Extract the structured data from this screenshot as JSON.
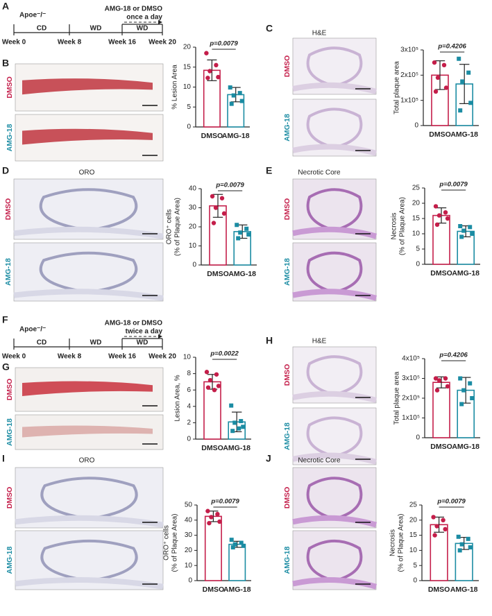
{
  "panel_labels": [
    "A",
    "B",
    "C",
    "D",
    "E",
    "F",
    "G",
    "H",
    "I",
    "J"
  ],
  "timelines": [
    {
      "strain": "Apoe⁻/⁻",
      "diets": [
        "CD",
        "WD",
        "WD"
      ],
      "weeks": [
        "Week 0",
        "Week 8",
        "Week 16",
        "Week 20"
      ],
      "treatment": [
        "AMG-18 or DMSO",
        "once a day"
      ]
    },
    {
      "strain": "Apoe⁻/⁻",
      "diets": [
        "CD",
        "WD",
        "WD"
      ],
      "weeks": [
        "Week 0",
        "Week 8",
        "Week 16",
        "Week 20"
      ],
      "treatment": [
        "AMG-18 or DMSO",
        "twice a day"
      ]
    }
  ],
  "image_panels": [
    {
      "rows": [
        "DMSO",
        "AMG-18"
      ]
    },
    {
      "title": "H&E",
      "rows": [
        "DMSO",
        "AMG-18"
      ]
    },
    {
      "title": "ORO",
      "rows": [
        "DMSO",
        "AMG-18"
      ]
    },
    {
      "title": "Necrotic Core",
      "rows": [
        "DMSO",
        "AMG-18"
      ]
    },
    {
      "rows": [
        "DMSO",
        "AMG-18"
      ]
    },
    {
      "title": "H&E",
      "rows": [
        "DMSO",
        "AMG-18"
      ]
    },
    {
      "title": "ORO",
      "rows": [
        "DMSO",
        "AMG-18"
      ]
    },
    {
      "title": "Necrotic Core",
      "rows": [
        "DMSO",
        "AMG-18"
      ]
    }
  ],
  "chart_data": [
    {
      "type": "bar",
      "ylabel": [
        "% Lesion Area"
      ],
      "categories": [
        "DMSO",
        "AMG-18"
      ],
      "colors": [
        "#c41e4a",
        "#1b8ca3"
      ],
      "values": [
        14.2,
        8.1
      ],
      "errors": [
        2.6,
        1.8
      ],
      "points": [
        [
          18.5,
          15.5,
          14,
          12.5,
          12.3
        ],
        [
          9.9,
          8.5,
          7.9,
          6.5,
          5.8
        ]
      ],
      "annotation": "p=0.0079",
      "ylim": [
        0,
        20
      ],
      "yticks": [
        0,
        5,
        10,
        15,
        20
      ]
    },
    {
      "type": "bar",
      "ylabel": [
        "Total plaque area"
      ],
      "categories": [
        "DMSO",
        "AMG-18"
      ],
      "colors": [
        "#c41e4a",
        "#1b8ca3"
      ],
      "values": [
        200000,
        165000
      ],
      "errors": [
        57000,
        78000
      ],
      "points": [
        [
          250000,
          240000,
          190000,
          150000,
          135000
        ],
        [
          265000,
          210000,
          175000,
          90000,
          60000
        ]
      ],
      "annotation": "p=0.4206",
      "ylim": [
        0,
        300000
      ],
      "yticks": [
        0,
        {
          "value": 100000,
          "label": "1x10⁵"
        },
        {
          "value": 200000,
          "label": "2x10⁵"
        },
        {
          "value": 300000,
          "label": "3x10⁵"
        }
      ]
    },
    {
      "type": "bar",
      "ylabel": [
        "ORO⁺ cells",
        "(% of Plaque Area)"
      ],
      "categories": [
        "DMSO",
        "AMG-18"
      ],
      "colors": [
        "#c41e4a",
        "#1b8ca3"
      ],
      "values": [
        31,
        17.5
      ],
      "errors": [
        6,
        3.5
      ],
      "points": [
        [
          36,
          35,
          30,
          27,
          22
        ],
        [
          21,
          19,
          17,
          16,
          14
        ]
      ],
      "annotation": "p=0.0079",
      "ylim": [
        0,
        40
      ],
      "yticks": [
        0,
        10,
        20,
        30,
        40
      ]
    },
    {
      "type": "bar",
      "ylabel": [
        "Necrosis",
        "(% of Plaque Area)"
      ],
      "categories": [
        "DMSO",
        "AMG-18"
      ],
      "colors": [
        "#c41e4a",
        "#1b8ca3"
      ],
      "values": [
        16,
        10.8
      ],
      "errors": [
        2.5,
        1.8
      ],
      "points": [
        [
          19,
          17,
          16,
          15,
          13
        ],
        [
          12.5,
          12.2,
          11,
          10,
          9
        ]
      ],
      "annotation": "p=0.0079",
      "ylim": [
        0,
        25
      ],
      "yticks": [
        0,
        5,
        10,
        15,
        20,
        25
      ]
    },
    {
      "type": "bar",
      "ylabel": [
        "Lesion Area, %"
      ],
      "categories": [
        "DMSO",
        "AMG-18"
      ],
      "colors": [
        "#c41e4a",
        "#1b8ca3"
      ],
      "values": [
        7.0,
        2.1
      ],
      "errors": [
        0.9,
        1.2
      ],
      "points": [
        [
          8.2,
          7.9,
          7.2,
          6.5,
          6.3,
          6.0
        ],
        [
          4.1,
          2.2,
          2.0,
          1.5,
          1.0,
          1.3
        ]
      ],
      "annotation": "p=0.0022",
      "ylim": [
        0,
        10
      ],
      "yticks": [
        0,
        2,
        4,
        6,
        8,
        10
      ]
    },
    {
      "type": "bar",
      "ylabel": [
        "Total plaque area"
      ],
      "categories": [
        "DMSO",
        "AMG-18"
      ],
      "colors": [
        "#c41e4a",
        "#1b8ca3"
      ],
      "values": [
        280000,
        240000
      ],
      "errors": [
        28000,
        65000
      ],
      "points": [
        [
          300000,
          300000,
          290000,
          260000,
          240000
        ],
        [
          300000,
          275000,
          240000,
          200000,
          170000
        ]
      ],
      "annotation": "p=0.4206",
      "ylim": [
        0,
        400000
      ],
      "yticks": [
        0,
        {
          "value": 100000,
          "label": "1x10⁵"
        },
        {
          "value": 200000,
          "label": "2x10⁵"
        },
        {
          "value": 300000,
          "label": "3x10⁵"
        },
        {
          "value": 400000,
          "label": "4x10⁵"
        }
      ]
    },
    {
      "type": "bar",
      "ylabel": [
        "ORO⁺ cells",
        "(% of Plaque Area)"
      ],
      "categories": [
        "DMSO",
        "AMG-18"
      ],
      "colors": [
        "#c41e4a",
        "#1b8ca3"
      ],
      "values": [
        42.5,
        24
      ],
      "errors": [
        3.5,
        2
      ],
      "points": [
        [
          46,
          44,
          42,
          39,
          38
        ],
        [
          27,
          25,
          24,
          23,
          22
        ]
      ],
      "annotation": "p=0.0079",
      "ylim": [
        0,
        50
      ],
      "yticks": [
        0,
        10,
        20,
        30,
        40,
        50
      ]
    },
    {
      "type": "bar",
      "ylabel": [
        "Necrosis",
        "(% of Plaque Area)"
      ],
      "categories": [
        "DMSO",
        "AMG-18"
      ],
      "colors": [
        "#c41e4a",
        "#1b8ca3"
      ],
      "values": [
        18.5,
        12.3
      ],
      "errors": [
        2.5,
        2
      ],
      "points": [
        [
          21,
          20,
          18,
          17,
          15
        ],
        [
          14.5,
          13.8,
          12,
          11,
          10
        ]
      ],
      "annotation": "p=0.0079",
      "ylim": [
        0,
        25
      ],
      "yticks": [
        0,
        5,
        10,
        15,
        20,
        25
      ]
    }
  ]
}
